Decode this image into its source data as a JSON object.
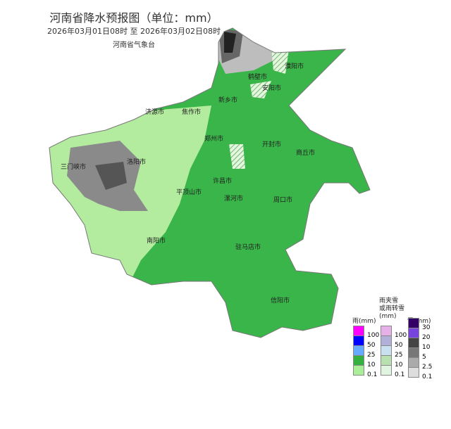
{
  "title": "河南省降水预报图（单位：mm）",
  "subtitle": "2026年03月01日08时  至  2026年03月02日08时",
  "org": "河南省气象台",
  "cities": [
    "鹤壁市",
    "濮阳市",
    "安阳市",
    "新乡市",
    "济源市",
    "焦作市",
    "郑州市",
    "开封市",
    "商丘市",
    "三门峡市",
    "洛阳市",
    "平顶山市",
    "许昌市",
    "漯河市",
    "周口市",
    "南阳市",
    "驻马店市",
    "信阳市"
  ],
  "legend": {
    "rain": {
      "title": "雨(mm)",
      "colors": [
        "#ff00ff",
        "#0000ff",
        "#66aaff",
        "#33b040",
        "#aaee99"
      ],
      "labels": [
        "100",
        "50",
        "25",
        "10",
        "0.1"
      ]
    },
    "mixed": {
      "title1": "雨夹雪",
      "title2": "或雨转雪",
      "title3": "(mm)",
      "colors": [
        "#e8b0e8",
        "#b0b0d8",
        "#c8e0f0",
        "#b8e0b0",
        "#e0f5e0"
      ],
      "labels": [
        "100",
        "50",
        "25",
        "10",
        "0.1"
      ]
    },
    "snow": {
      "title": "雪(mm)",
      "colors": [
        "#330066",
        "#7744dd",
        "#444444",
        "#777777",
        "#aaaaaa",
        "#dddddd"
      ],
      "labels": [
        "30",
        "20",
        "10",
        "5",
        "2.5",
        "0.1"
      ]
    }
  }
}
